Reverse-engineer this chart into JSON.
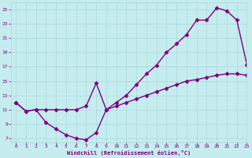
{
  "xlabel": "Windchill (Refroidissement éolien,°C)",
  "background_color": "#c5ecee",
  "line_color": "#800080",
  "x_upper": [
    0,
    1,
    2,
    3,
    4,
    5,
    6,
    7,
    8,
    9,
    10,
    11,
    12,
    13,
    14,
    15,
    16,
    17,
    18,
    19,
    20,
    21,
    22,
    23
  ],
  "y_upper": [
    12.0,
    10.8,
    11.0,
    11.0,
    11.0,
    11.0,
    11.0,
    11.5,
    14.7,
    11.0,
    12.0,
    13.0,
    14.5,
    16.0,
    17.2,
    19.0,
    20.2,
    21.5,
    23.5,
    23.5,
    25.2,
    24.8,
    23.5,
    17.3
  ],
  "x_lower": [
    0,
    1,
    2,
    3,
    4,
    5,
    6,
    7,
    8,
    9,
    10,
    11,
    12,
    13,
    14,
    15,
    16,
    17,
    18,
    19,
    20,
    21,
    22,
    23
  ],
  "y_lower": [
    12.0,
    10.8,
    11.0,
    9.2,
    8.3,
    7.5,
    7.0,
    6.8,
    7.8,
    11.0,
    11.5,
    12.0,
    12.5,
    13.0,
    13.5,
    14.0,
    14.5,
    15.0,
    15.2,
    15.5,
    15.8,
    16.0,
    16.0,
    15.8
  ],
  "xlim": [
    -0.5,
    23
  ],
  "ylim": [
    6.5,
    26
  ],
  "yticks": [
    7,
    9,
    11,
    13,
    15,
    17,
    19,
    21,
    23,
    25
  ],
  "xticks": [
    0,
    1,
    2,
    3,
    4,
    5,
    6,
    7,
    8,
    9,
    10,
    11,
    12,
    13,
    14,
    15,
    16,
    17,
    18,
    19,
    20,
    21,
    22,
    23
  ],
  "grid_color": "#aad8da",
  "marker": "D",
  "markersize": 2.5,
  "linewidth": 1.0
}
